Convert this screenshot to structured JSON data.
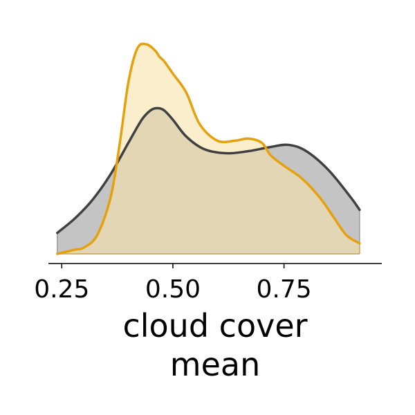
{
  "chart_data": {
    "type": "area",
    "title": "",
    "xlabel_lines": [
      "cloud cover",
      "mean"
    ],
    "ylabel": "",
    "xlim": [
      0.22,
      0.97
    ],
    "ylim": [
      0,
      1.0
    ],
    "x_ticks": [
      0.25,
      0.5,
      0.75
    ],
    "x_tick_labels": [
      "0.25",
      "0.50",
      "0.75"
    ],
    "grid": false,
    "legend": "none",
    "series": [
      {
        "color": "#404040",
        "fill": "#c4c4c4",
        "x": [
          0.24,
          0.28,
          0.32,
          0.36,
          0.4,
          0.43,
          0.45,
          0.465,
          0.48,
          0.5,
          0.53,
          0.57,
          0.62,
          0.67,
          0.72,
          0.76,
          0.8,
          0.85,
          0.9,
          0.92
        ],
        "y": [
          0.1,
          0.17,
          0.26,
          0.38,
          0.53,
          0.64,
          0.685,
          0.695,
          0.685,
          0.64,
          0.56,
          0.5,
          0.48,
          0.49,
          0.51,
          0.52,
          0.49,
          0.4,
          0.27,
          0.21
        ]
      },
      {
        "color": "#e5a00d",
        "fill": "#f9e2ab",
        "x": [
          0.24,
          0.28,
          0.3,
          0.33,
          0.36,
          0.38,
          0.4,
          0.42,
          0.44,
          0.46,
          0.47,
          0.48,
          0.5,
          0.53,
          0.56,
          0.6,
          0.64,
          0.67,
          0.7,
          0.72,
          0.75,
          0.79,
          0.83,
          0.86,
          0.89,
          0.92
        ],
        "y": [
          0.0,
          0.02,
          0.03,
          0.09,
          0.27,
          0.52,
          0.82,
          0.98,
          1.0,
          0.97,
          0.94,
          0.92,
          0.86,
          0.77,
          0.62,
          0.54,
          0.54,
          0.55,
          0.53,
          0.47,
          0.42,
          0.36,
          0.27,
          0.18,
          0.09,
          0.05
        ]
      }
    ]
  }
}
